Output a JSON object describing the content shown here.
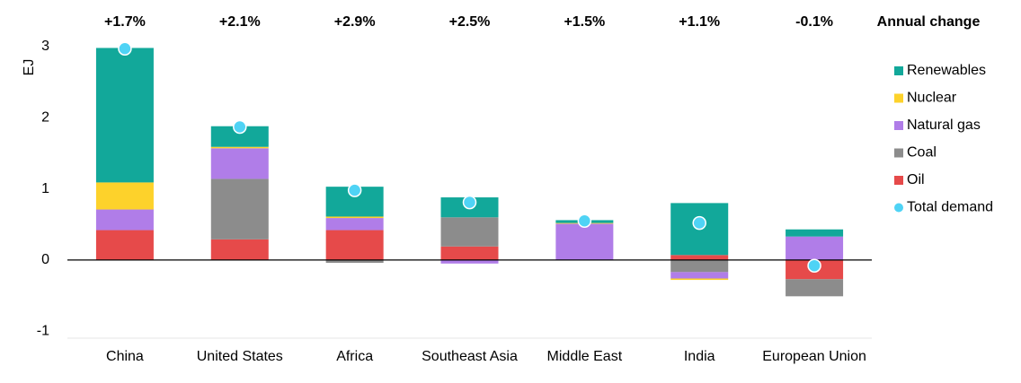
{
  "chart_data": {
    "type": "stacked_bar",
    "y_label": "EJ",
    "categories": [
      "China",
      "United States",
      "Africa",
      "Southeast Asia",
      "Middle East",
      "India",
      "European Union"
    ],
    "annual_change_label": "Annual change",
    "annual_change": [
      "+1.7%",
      "+2.1%",
      "+2.9%",
      "+2.5%",
      "+1.5%",
      "+1.1%",
      "-0.1%"
    ],
    "series": [
      {
        "name": "Oil",
        "color": "#e64a4a",
        "values": [
          0.42,
          0.29,
          0.42,
          0.19,
          0,
          0.07,
          -0.27
        ]
      },
      {
        "name": "Coal",
        "color": "#8c8c8c",
        "values": [
          0,
          0.85,
          -0.04,
          0.41,
          0,
          -0.17,
          -0.24
        ]
      },
      {
        "name": "Natural gas",
        "color": "#b07de8",
        "values": [
          0.29,
          0.43,
          0.17,
          -0.05,
          0.51,
          -0.09,
          0.33
        ]
      },
      {
        "name": "Nuclear",
        "color": "#fdd22b",
        "values": [
          0.38,
          0.02,
          0.02,
          0,
          0.01,
          -0.02,
          0
        ]
      },
      {
        "name": "Renewables",
        "color": "#12a89a",
        "values": [
          1.89,
          0.29,
          0.42,
          0.28,
          0.04,
          0.73,
          0.1
        ]
      }
    ],
    "total": {
      "name": "Total demand",
      "color": "#4fd3f5",
      "values": [
        2.97,
        1.87,
        0.98,
        0.81,
        0.55,
        0.52,
        -0.08
      ]
    },
    "ylim": [
      -1.3,
      3.2
    ],
    "yticks": [
      -1,
      0,
      1,
      2,
      3
    ],
    "grid": false
  }
}
